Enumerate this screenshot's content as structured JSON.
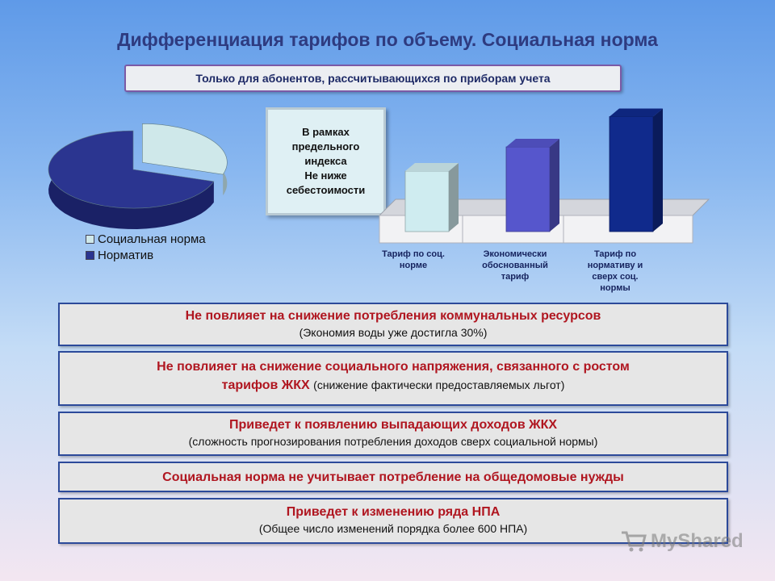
{
  "slide": {
    "title": "Дифференциация тарифов по объему. Социальная норма",
    "subtitle": "Только для абонентов, рассчитывающихся по приборам учета"
  },
  "pie_chart": {
    "legend": [
      {
        "label": "Социальная норма",
        "color": "#cfe8ea"
      },
      {
        "label": "Норматив",
        "color": "#2b3590"
      }
    ]
  },
  "note_box": {
    "text": "В рамках\nпредельного\nиндекса\nНе ниже\nсебестоимости"
  },
  "chart_data": [
    {
      "type": "pie",
      "categories": [
        "Социальная норма",
        "Норматив"
      ],
      "values": [
        30,
        70
      ],
      "colors": [
        "#cfe8ea",
        "#2b3590"
      ],
      "legend_position": "bottom"
    },
    {
      "type": "bar",
      "categories": [
        "Тариф по соц.\nнорме",
        "Экономически\nобоснованный\nтариф",
        "Тариф по\nнормативу и\nсверх соц.\nнормы"
      ],
      "values": [
        1,
        1.4,
        1.9
      ],
      "colors": [
        "#cfecf0",
        "#5656cc",
        "#102a8c"
      ],
      "grid": false
    }
  ],
  "panels": [
    {
      "heading": "Не повлияет на снижение потребления коммунальных ресурсов",
      "sub": "(Экономия воды уже достигла 30%)"
    },
    {
      "heading": "Не повлияет на снижение социального напряжения, связанного с ростом",
      "heading2": "тарифов  ЖКХ",
      "sub": "(снижение фактически предоставляемых льгот)"
    },
    {
      "heading": "Приведет к появлению выпадающих доходов ЖКХ",
      "sub": "(сложность прогнозирования потребления доходов сверх социальной нормы)"
    },
    {
      "heading": "Социальная норма не учитывает потребление на общедомовые нужды"
    },
    {
      "heading": "Приведет к изменению ряда НПА",
      "sub": "(Общее число изменений порядка  более 600 НПА)"
    }
  ],
  "watermark": {
    "text": "MyShared"
  }
}
